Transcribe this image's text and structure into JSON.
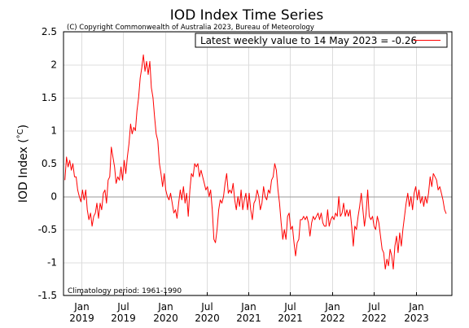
{
  "chart_data": {
    "type": "line",
    "title": "IOD Index Time Series",
    "subtitle": "(C) Copyright Commonwealth of Australia 2023, Bureau of Meteorology",
    "ylabel": "IOD Index (",
    "ylabel_unit": "°C",
    "ylabel_close": ")",
    "footnote": "Climatology period: 1961-1990",
    "legend": "top-right",
    "grid": true,
    "ylim": [
      -1.5,
      2.5
    ],
    "xlim": [
      "2018-10-15",
      "2023-06-08"
    ],
    "y_ticks": [
      "2.5",
      "2",
      "1.5",
      "1",
      "0.5",
      "0",
      "-0.5",
      "-1",
      "-1.5"
    ],
    "x_ticks": [
      {
        "date": "2019-01-01",
        "line1": "Jan",
        "line2": "2019"
      },
      {
        "date": "2019-07-01",
        "line1": "Jul",
        "line2": "2019"
      },
      {
        "date": "2020-01-01",
        "line1": "Jan",
        "line2": "2020"
      },
      {
        "date": "2020-07-01",
        "line1": "Jul",
        "line2": "2020"
      },
      {
        "date": "2021-01-01",
        "line1": "Jan",
        "line2": "2021"
      },
      {
        "date": "2021-07-01",
        "line1": "Jul",
        "line2": "2021"
      },
      {
        "date": "2022-01-01",
        "line1": "Jan",
        "line2": "2022"
      },
      {
        "date": "2022-07-01",
        "line1": "Jul",
        "line2": "2022"
      },
      {
        "date": "2023-01-01",
        "line1": "Jan",
        "line2": "2023"
      }
    ],
    "series": [
      {
        "name": "Latest weekly value to 14 May 2023 = -0.26",
        "color": "#ff0000",
        "points": [
          [
            "2018-10-21",
            0.25
          ],
          [
            "2018-10-28",
            0.6
          ],
          [
            "2018-11-04",
            0.45
          ],
          [
            "2018-11-11",
            0.55
          ],
          [
            "2018-11-18",
            0.4
          ],
          [
            "2018-11-25",
            0.5
          ],
          [
            "2018-12-02",
            0.3
          ],
          [
            "2018-12-09",
            0.3
          ],
          [
            "2018-12-16",
            0.1
          ],
          [
            "2018-12-23",
            0.0
          ],
          [
            "2018-12-30",
            -0.08
          ],
          [
            "2019-01-06",
            0.1
          ],
          [
            "2019-01-13",
            -0.05
          ],
          [
            "2019-01-20",
            0.1
          ],
          [
            "2019-01-27",
            -0.2
          ],
          [
            "2019-02-03",
            -0.35
          ],
          [
            "2019-02-10",
            -0.25
          ],
          [
            "2019-02-17",
            -0.45
          ],
          [
            "2019-02-24",
            -0.3
          ],
          [
            "2019-03-03",
            -0.25
          ],
          [
            "2019-03-10",
            -0.1
          ],
          [
            "2019-03-17",
            -0.33
          ],
          [
            "2019-03-24",
            -0.1
          ],
          [
            "2019-03-31",
            -0.2
          ],
          [
            "2019-04-07",
            0.05
          ],
          [
            "2019-04-14",
            0.1
          ],
          [
            "2019-04-21",
            -0.1
          ],
          [
            "2019-04-28",
            0.25
          ],
          [
            "2019-05-05",
            0.3
          ],
          [
            "2019-05-12",
            0.75
          ],
          [
            "2019-05-19",
            0.6
          ],
          [
            "2019-05-26",
            0.45
          ],
          [
            "2019-06-02",
            0.2
          ],
          [
            "2019-06-09",
            0.3
          ],
          [
            "2019-06-16",
            0.25
          ],
          [
            "2019-06-23",
            0.45
          ],
          [
            "2019-06-30",
            0.25
          ],
          [
            "2019-07-07",
            0.55
          ],
          [
            "2019-07-14",
            0.35
          ],
          [
            "2019-07-21",
            0.6
          ],
          [
            "2019-07-28",
            0.8
          ],
          [
            "2019-08-04",
            1.1
          ],
          [
            "2019-08-11",
            0.95
          ],
          [
            "2019-08-18",
            1.05
          ],
          [
            "2019-08-25",
            1.0
          ],
          [
            "2019-09-01",
            1.3
          ],
          [
            "2019-09-08",
            1.5
          ],
          [
            "2019-09-15",
            1.8
          ],
          [
            "2019-09-22",
            1.95
          ],
          [
            "2019-09-29",
            2.15
          ],
          [
            "2019-10-06",
            1.9
          ],
          [
            "2019-10-13",
            2.05
          ],
          [
            "2019-10-20",
            1.85
          ],
          [
            "2019-10-27",
            2.05
          ],
          [
            "2019-11-03",
            1.65
          ],
          [
            "2019-11-10",
            1.5
          ],
          [
            "2019-11-17",
            1.2
          ],
          [
            "2019-11-24",
            0.95
          ],
          [
            "2019-12-01",
            0.85
          ],
          [
            "2019-12-08",
            0.5
          ],
          [
            "2019-12-15",
            0.35
          ],
          [
            "2019-12-22",
            0.15
          ],
          [
            "2019-12-29",
            0.35
          ],
          [
            "2020-01-05",
            0.1
          ],
          [
            "2020-01-12",
            0.0
          ],
          [
            "2020-01-19",
            -0.05
          ],
          [
            "2020-01-26",
            0.05
          ],
          [
            "2020-02-02",
            -0.1
          ],
          [
            "2020-02-09",
            -0.25
          ],
          [
            "2020-02-16",
            -0.2
          ],
          [
            "2020-02-23",
            -0.33
          ],
          [
            "2020-03-01",
            -0.1
          ],
          [
            "2020-03-08",
            0.1
          ],
          [
            "2020-03-15",
            -0.05
          ],
          [
            "2020-03-22",
            0.15
          ],
          [
            "2020-03-29",
            -0.1
          ],
          [
            "2020-04-05",
            0.05
          ],
          [
            "2020-04-12",
            -0.3
          ],
          [
            "2020-04-19",
            0.1
          ],
          [
            "2020-04-26",
            0.35
          ],
          [
            "2020-05-03",
            0.3
          ],
          [
            "2020-05-10",
            0.5
          ],
          [
            "2020-05-17",
            0.45
          ],
          [
            "2020-05-24",
            0.5
          ],
          [
            "2020-05-31",
            0.3
          ],
          [
            "2020-06-07",
            0.4
          ],
          [
            "2020-06-14",
            0.3
          ],
          [
            "2020-06-21",
            0.2
          ],
          [
            "2020-06-28",
            0.1
          ],
          [
            "2020-07-05",
            0.15
          ],
          [
            "2020-07-12",
            0.0
          ],
          [
            "2020-07-19",
            0.1
          ],
          [
            "2020-07-26",
            -0.2
          ],
          [
            "2020-08-02",
            -0.65
          ],
          [
            "2020-08-09",
            -0.7
          ],
          [
            "2020-08-16",
            -0.5
          ],
          [
            "2020-08-23",
            -0.2
          ],
          [
            "2020-08-30",
            -0.05
          ],
          [
            "2020-09-06",
            -0.1
          ],
          [
            "2020-09-13",
            0.0
          ],
          [
            "2020-09-20",
            0.2
          ],
          [
            "2020-09-27",
            0.35
          ],
          [
            "2020-10-04",
            0.05
          ],
          [
            "2020-10-11",
            0.1
          ],
          [
            "2020-10-18",
            0.05
          ],
          [
            "2020-10-25",
            0.2
          ],
          [
            "2020-11-01",
            -0.05
          ],
          [
            "2020-11-08",
            -0.2
          ],
          [
            "2020-11-15",
            0.0
          ],
          [
            "2020-11-22",
            -0.15
          ],
          [
            "2020-11-29",
            0.1
          ],
          [
            "2020-12-06",
            -0.2
          ],
          [
            "2020-12-13",
            -0.05
          ],
          [
            "2020-12-20",
            0.05
          ],
          [
            "2020-12-27",
            -0.2
          ],
          [
            "2021-01-03",
            0.05
          ],
          [
            "2021-01-10",
            -0.2
          ],
          [
            "2021-01-17",
            -0.35
          ],
          [
            "2021-01-24",
            -0.1
          ],
          [
            "2021-01-31",
            -0.05
          ],
          [
            "2021-02-07",
            0.1
          ],
          [
            "2021-02-14",
            0.0
          ],
          [
            "2021-02-21",
            -0.2
          ],
          [
            "2021-02-28",
            -0.1
          ],
          [
            "2021-03-07",
            0.15
          ],
          [
            "2021-03-14",
            0.0
          ],
          [
            "2021-03-21",
            -0.05
          ],
          [
            "2021-03-28",
            0.1
          ],
          [
            "2021-04-04",
            0.05
          ],
          [
            "2021-04-11",
            0.25
          ],
          [
            "2021-04-18",
            0.3
          ],
          [
            "2021-04-25",
            0.5
          ],
          [
            "2021-05-02",
            0.4
          ],
          [
            "2021-05-09",
            0.1
          ],
          [
            "2021-05-16",
            -0.1
          ],
          [
            "2021-05-23",
            -0.4
          ],
          [
            "2021-05-30",
            -0.65
          ],
          [
            "2021-06-06",
            -0.5
          ],
          [
            "2021-06-13",
            -0.65
          ],
          [
            "2021-06-20",
            -0.3
          ],
          [
            "2021-06-27",
            -0.25
          ],
          [
            "2021-07-04",
            -0.5
          ],
          [
            "2021-07-11",
            -0.45
          ],
          [
            "2021-07-18",
            -0.7
          ],
          [
            "2021-07-25",
            -0.9
          ],
          [
            "2021-08-01",
            -0.7
          ],
          [
            "2021-08-08",
            -0.65
          ],
          [
            "2021-08-15",
            -0.35
          ],
          [
            "2021-08-22",
            -0.35
          ],
          [
            "2021-08-29",
            -0.3
          ],
          [
            "2021-09-05",
            -0.35
          ],
          [
            "2021-09-12",
            -0.3
          ],
          [
            "2021-09-19",
            -0.4
          ],
          [
            "2021-09-26",
            -0.6
          ],
          [
            "2021-10-03",
            -0.4
          ],
          [
            "2021-10-10",
            -0.3
          ],
          [
            "2021-10-17",
            -0.35
          ],
          [
            "2021-10-24",
            -0.3
          ],
          [
            "2021-10-31",
            -0.25
          ],
          [
            "2021-11-07",
            -0.35
          ],
          [
            "2021-11-14",
            -0.25
          ],
          [
            "2021-11-21",
            -0.4
          ],
          [
            "2021-11-28",
            -0.45
          ],
          [
            "2021-12-05",
            -0.45
          ],
          [
            "2021-12-12",
            -0.2
          ],
          [
            "2021-12-19",
            -0.45
          ],
          [
            "2021-12-26",
            -0.35
          ],
          [
            "2022-01-02",
            -0.3
          ],
          [
            "2022-01-09",
            -0.35
          ],
          [
            "2022-01-16",
            -0.25
          ],
          [
            "2022-01-23",
            -0.3
          ],
          [
            "2022-01-30",
            0.0
          ],
          [
            "2022-02-06",
            -0.3
          ],
          [
            "2022-02-13",
            -0.25
          ],
          [
            "2022-02-20",
            -0.1
          ],
          [
            "2022-02-27",
            -0.3
          ],
          [
            "2022-03-06",
            -0.2
          ],
          [
            "2022-03-13",
            -0.3
          ],
          [
            "2022-03-20",
            -0.2
          ],
          [
            "2022-03-27",
            -0.45
          ],
          [
            "2022-04-03",
            -0.75
          ],
          [
            "2022-04-10",
            -0.45
          ],
          [
            "2022-04-17",
            -0.5
          ],
          [
            "2022-04-24",
            -0.3
          ],
          [
            "2022-05-01",
            -0.15
          ],
          [
            "2022-05-08",
            0.05
          ],
          [
            "2022-05-15",
            -0.2
          ],
          [
            "2022-05-22",
            -0.45
          ],
          [
            "2022-05-29",
            -0.25
          ],
          [
            "2022-06-05",
            0.1
          ],
          [
            "2022-06-12",
            -0.3
          ],
          [
            "2022-06-19",
            -0.35
          ],
          [
            "2022-06-26",
            -0.3
          ],
          [
            "2022-07-03",
            -0.45
          ],
          [
            "2022-07-10",
            -0.5
          ],
          [
            "2022-07-17",
            -0.3
          ],
          [
            "2022-07-24",
            -0.4
          ],
          [
            "2022-07-31",
            -0.6
          ],
          [
            "2022-08-07",
            -0.8
          ],
          [
            "2022-08-14",
            -0.85
          ],
          [
            "2022-08-21",
            -1.1
          ],
          [
            "2022-08-28",
            -0.95
          ],
          [
            "2022-09-04",
            -1.05
          ],
          [
            "2022-09-11",
            -0.8
          ],
          [
            "2022-09-18",
            -0.9
          ],
          [
            "2022-09-25",
            -1.1
          ],
          [
            "2022-10-02",
            -0.75
          ],
          [
            "2022-10-09",
            -0.6
          ],
          [
            "2022-10-16",
            -0.85
          ],
          [
            "2022-10-23",
            -0.55
          ],
          [
            "2022-10-30",
            -0.75
          ],
          [
            "2022-11-06",
            -0.5
          ],
          [
            "2022-11-13",
            -0.3
          ],
          [
            "2022-11-20",
            -0.1
          ],
          [
            "2022-11-27",
            0.05
          ],
          [
            "2022-12-04",
            -0.15
          ],
          [
            "2022-12-11",
            0.0
          ],
          [
            "2022-12-18",
            -0.2
          ],
          [
            "2022-12-25",
            0.05
          ],
          [
            "2023-01-01",
            0.15
          ],
          [
            "2023-01-08",
            -0.05
          ],
          [
            "2023-01-15",
            0.1
          ],
          [
            "2023-01-22",
            -0.1
          ],
          [
            "2023-01-29",
            0.0
          ],
          [
            "2023-02-05",
            -0.15
          ],
          [
            "2023-02-12",
            0.0
          ],
          [
            "2023-02-19",
            -0.1
          ],
          [
            "2023-02-26",
            0.05
          ],
          [
            "2023-03-05",
            0.3
          ],
          [
            "2023-03-12",
            0.15
          ],
          [
            "2023-03-19",
            0.35
          ],
          [
            "2023-03-26",
            0.3
          ],
          [
            "2023-04-02",
            0.25
          ],
          [
            "2023-04-09",
            0.1
          ],
          [
            "2023-04-16",
            0.15
          ],
          [
            "2023-04-23",
            0.05
          ],
          [
            "2023-04-30",
            -0.05
          ],
          [
            "2023-05-07",
            -0.2
          ],
          [
            "2023-05-14",
            -0.26
          ]
        ]
      }
    ]
  }
}
